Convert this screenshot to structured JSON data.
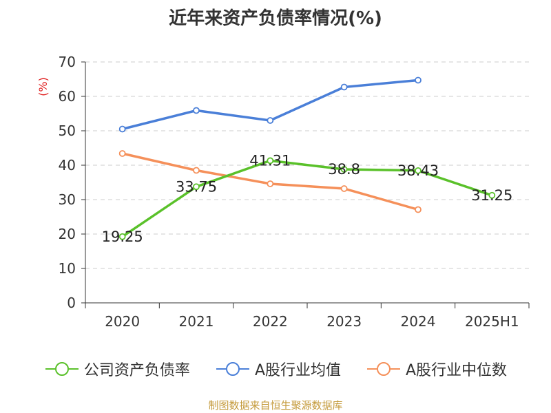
{
  "chart_data": {
    "type": "line",
    "title": "近年来资产负债率情况(%)",
    "ylabel": "(%)",
    "xlabel": "",
    "categories": [
      "2020",
      "2021",
      "2022",
      "2023",
      "2024",
      "2025H1"
    ],
    "ylim": [
      0,
      70
    ],
    "yticks": [
      0,
      10,
      20,
      30,
      40,
      50,
      60,
      70
    ],
    "grid": true,
    "legend_position": "bottom",
    "series": [
      {
        "name": "公司资产负债率",
        "color": "#5ac12a",
        "values": [
          19.25,
          33.75,
          41.31,
          38.8,
          38.43,
          31.25
        ],
        "labels": [
          "19.25",
          "33.75",
          "41.31",
          "38.8",
          "38.43",
          "31.25"
        ]
      },
      {
        "name": "A股行业均值",
        "color": "#4a7fd8",
        "values": [
          50.5,
          55.9,
          53.0,
          62.7,
          64.7,
          null
        ]
      },
      {
        "name": "A股行业中位数",
        "color": "#f5905a",
        "values": [
          43.4,
          38.5,
          34.6,
          33.2,
          27.1,
          null
        ]
      }
    ]
  },
  "source_text": "制图数据来自恒生聚源数据库"
}
